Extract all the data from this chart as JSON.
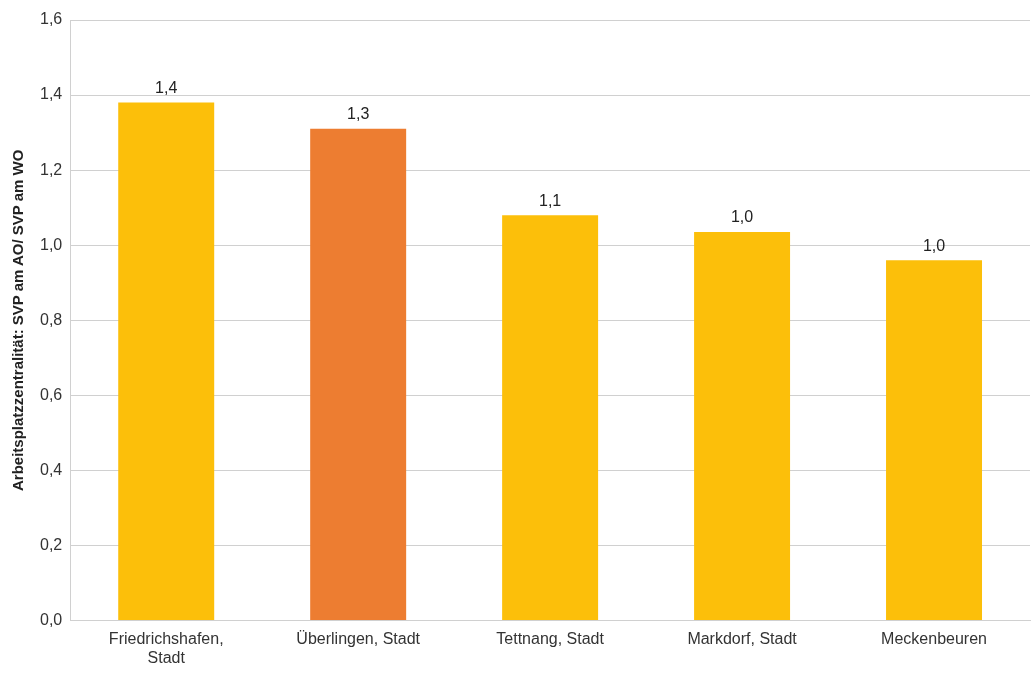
{
  "chart_data": {
    "type": "bar",
    "ylabel": "Arbeitsplatzzentralität: SVP am AO/ SVP am WO",
    "categories": [
      "Friedrichshafen, Stadt",
      "Überlingen, Stadt",
      "Tettnang, Stadt",
      "Markdorf, Stadt",
      "Meckenbeuren"
    ],
    "values": [
      1.38,
      1.31,
      1.08,
      1.035,
      0.96
    ],
    "value_labels": [
      "1,4",
      "1,3",
      "1,1",
      "1,0",
      "1,0"
    ],
    "colors": [
      "#fcbf0a",
      "#ed7d31",
      "#fcbf0a",
      "#fcbf0a",
      "#fcbf0a"
    ],
    "ylim": [
      0,
      1.6
    ],
    "yticks": [
      {
        "value": 0,
        "label": "0,0"
      },
      {
        "value": 0.2,
        "label": "0,2"
      },
      {
        "value": 0.4,
        "label": "0,4"
      },
      {
        "value": 0.6,
        "label": "0,6"
      },
      {
        "value": 0.8,
        "label": "0,8"
      },
      {
        "value": 1.0,
        "label": "1,0"
      },
      {
        "value": 1.2,
        "label": "1,2"
      },
      {
        "value": 1.4,
        "label": "1,4"
      },
      {
        "value": 1.6,
        "label": "1,6"
      }
    ],
    "grid": "y"
  }
}
